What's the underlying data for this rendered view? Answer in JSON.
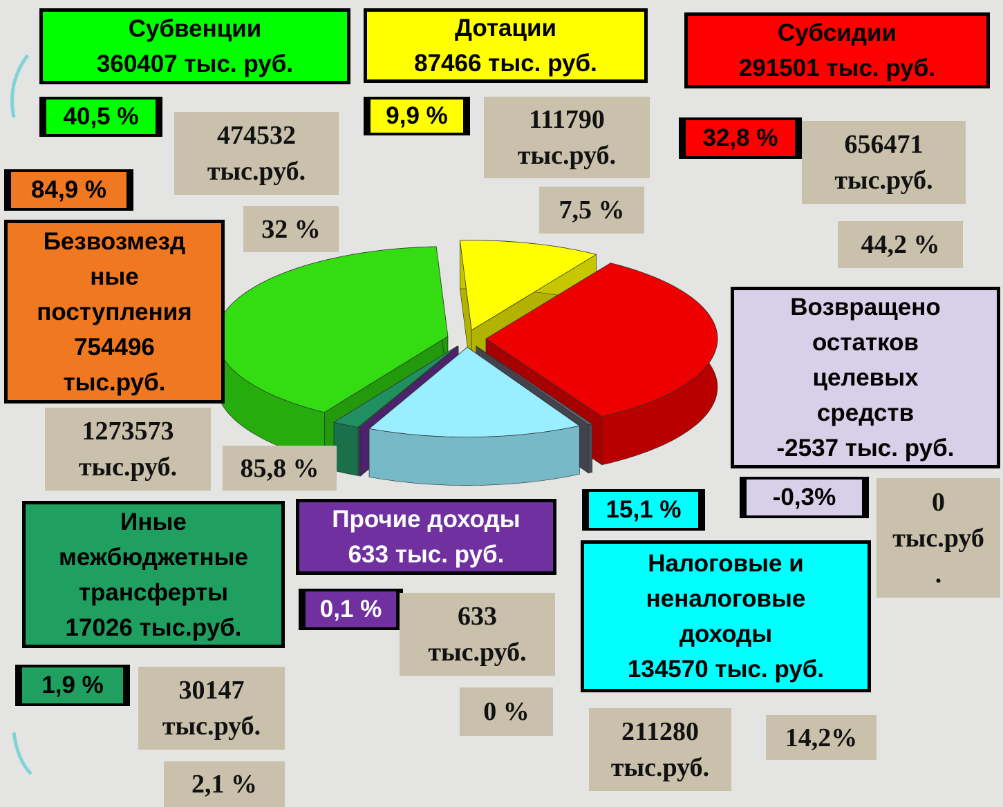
{
  "chart_data": {
    "type": "pie",
    "values": [
      40.5,
      9.9,
      32.8,
      15.1,
      0.1,
      1.9,
      -0.3
    ],
    "value_labels": [
      "40,5 %",
      "9,9 %",
      "32,8 %",
      "15,1 %",
      "0,1 %",
      "1,9 %",
      "-0,3%"
    ],
    "colors": [
      "#33dd11",
      "#ffff00",
      "#ee0000",
      "#99eeff",
      "#7030a0",
      "#209060",
      "#606070"
    ]
  },
  "items": [
    {
      "title": "Субвенции",
      "amount": "360407 тыс. руб.",
      "prev_amount": "474532\nтыс.руб.",
      "prev_share": "32 %"
    },
    {
      "title": "Дотации",
      "amount": "87466 тыс. руб.",
      "prev_amount": "111790\nтыс.руб.",
      "prev_share": "7,5 %"
    },
    {
      "title": "Субсидии",
      "amount": "291501 тыс. руб.",
      "prev_amount": "656471\nтыс.руб.",
      "prev_share": "44,2 %"
    },
    {
      "title": "Налоговые и\nненалоговые\nдоходы",
      "amount": "134570 тыс. руб.",
      "prev_amount": "211280\nтыс.руб.",
      "prev_share": "14,2%"
    },
    {
      "title": "Прочие доходы",
      "amount": "633 тыс. руб.",
      "prev_amount": "633\nтыс.руб.",
      "prev_share": "0 %"
    },
    {
      "title": "Иные\nмежбюджетные\nтрансферты",
      "amount": "17026 тыс.руб.",
      "prev_amount": "30147\nтыс.руб.",
      "prev_share": "2,1 %"
    },
    {
      "title": "Возвращено\nостатков\nцелевых\nсредств",
      "amount": "-2537 тыс. руб.",
      "prev_amount": "0\nтыс.руб\n."
    }
  ],
  "total": {
    "title": "Безвозмезд\nные\nпоступления",
    "amount": "754496\nтыс.руб.",
    "share": "84,9 %",
    "prev_amount": "1273573\nтыс.руб.",
    "prev_share": "85,8 %"
  }
}
